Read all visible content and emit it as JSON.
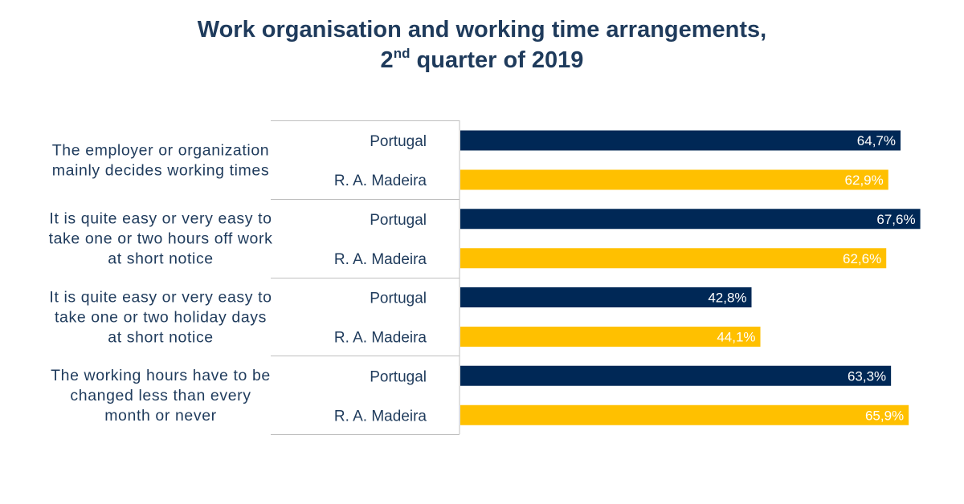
{
  "title": {
    "line1": "Work organisation and working time arrangements,",
    "line2_prefix": "2",
    "line2_sup": "nd",
    "line2_rest": " quarter of 2019"
  },
  "colors": {
    "portugal": "#002856",
    "madeira": "#ffc000",
    "text": "#1f3b5c",
    "divider": "#bfbfbf"
  },
  "chart_data": {
    "type": "bar",
    "orientation": "horizontal",
    "title": "Work organisation and working time arrangements, 2nd quarter of 2019",
    "categories": [
      [
        "The employer or organization",
        "mainly decides working times"
      ],
      [
        "It is quite easy or very easy to",
        "take one or two hours off work",
        "at short notice"
      ],
      [
        "It is quite easy or very easy to",
        "take one or two holiday days",
        "at short notice"
      ],
      [
        "The working hours have to be",
        "changed less than every",
        "month or never"
      ]
    ],
    "series": [
      {
        "name": "Portugal",
        "values": [
          64.7,
          67.6,
          42.8,
          63.3
        ]
      },
      {
        "name": "R. A. Madeira",
        "values": [
          62.9,
          62.6,
          44.1,
          65.9
        ]
      }
    ],
    "value_labels": [
      [
        "64,7%",
        "67,6%",
        "42,8%",
        "63,3%"
      ],
      [
        "62,9%",
        "62,6%",
        "44,1%",
        "65,9%"
      ]
    ],
    "unit": "%",
    "grid": false,
    "legend": "none"
  }
}
